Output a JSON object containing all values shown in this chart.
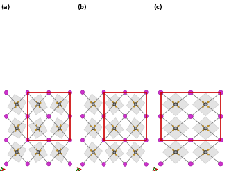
{
  "background_color": "#ffffff",
  "panel_labels": [
    "(a)",
    "(b)",
    "(c)"
  ],
  "atom_A_color": "#cc33cc",
  "atom_A_edge": "#990099",
  "atom_B_color": "#555555",
  "atom_B_edge": "#222222",
  "atom_small_color": "#996633",
  "bond_color": "#666666",
  "cell_color": "#cc0000",
  "cell_lw": 1.2,
  "oct_color": "#cccccc",
  "oct_edge": "#aaaaaa",
  "oct_alpha": 0.55,
  "label_fs": 6,
  "fig_width": 3.3,
  "fig_height": 2.46,
  "dpi": 100
}
